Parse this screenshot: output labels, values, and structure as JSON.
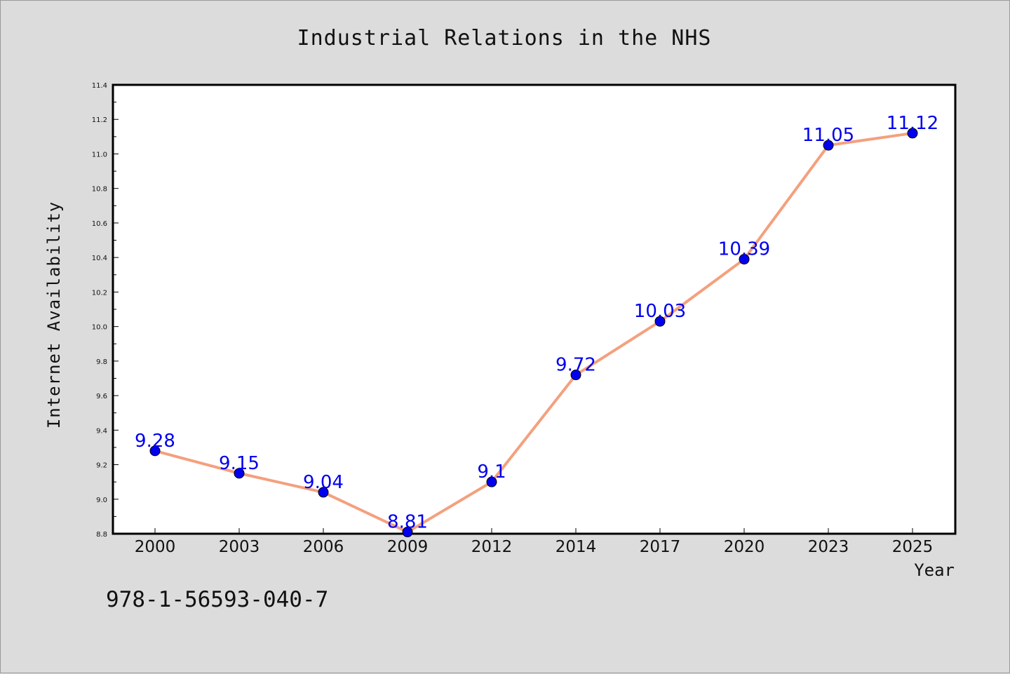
{
  "chart_data": {
    "type": "line",
    "title": "Industrial Relations in the NHS",
    "xlabel": "Year",
    "ylabel": "Internet Availability",
    "categories": [
      "2000",
      "2003",
      "2006",
      "2009",
      "2012",
      "2014",
      "2017",
      "2020",
      "2023",
      "2025"
    ],
    "series": [
      {
        "values": [
          9.28,
          9.15,
          9.04,
          8.81,
          9.1,
          9.72,
          10.03,
          10.39,
          11.05,
          11.12
        ],
        "data_labels": [
          "9.28",
          "9.15",
          "9.04",
          "8.81",
          "9.1",
          "9.72",
          "10.03",
          "10.39",
          "11.05",
          "11.12"
        ],
        "line_color": "#f4a07e",
        "marker_color": "#0000ee"
      }
    ],
    "ylim": [
      8.8,
      11.4
    ],
    "yticks": [
      "8.8",
      "9.0",
      "9.2",
      "9.4",
      "9.6",
      "9.8",
      "10.0",
      "10.2",
      "10.4",
      "10.6",
      "10.8",
      "11.0",
      "11.2",
      "11.4"
    ],
    "grid": false,
    "legend": "none"
  },
  "footer_text": "978-1-56593-040-7",
  "colors": {
    "background": "#dcdcdc",
    "plot_background": "#ffffff",
    "text": "#111111"
  }
}
